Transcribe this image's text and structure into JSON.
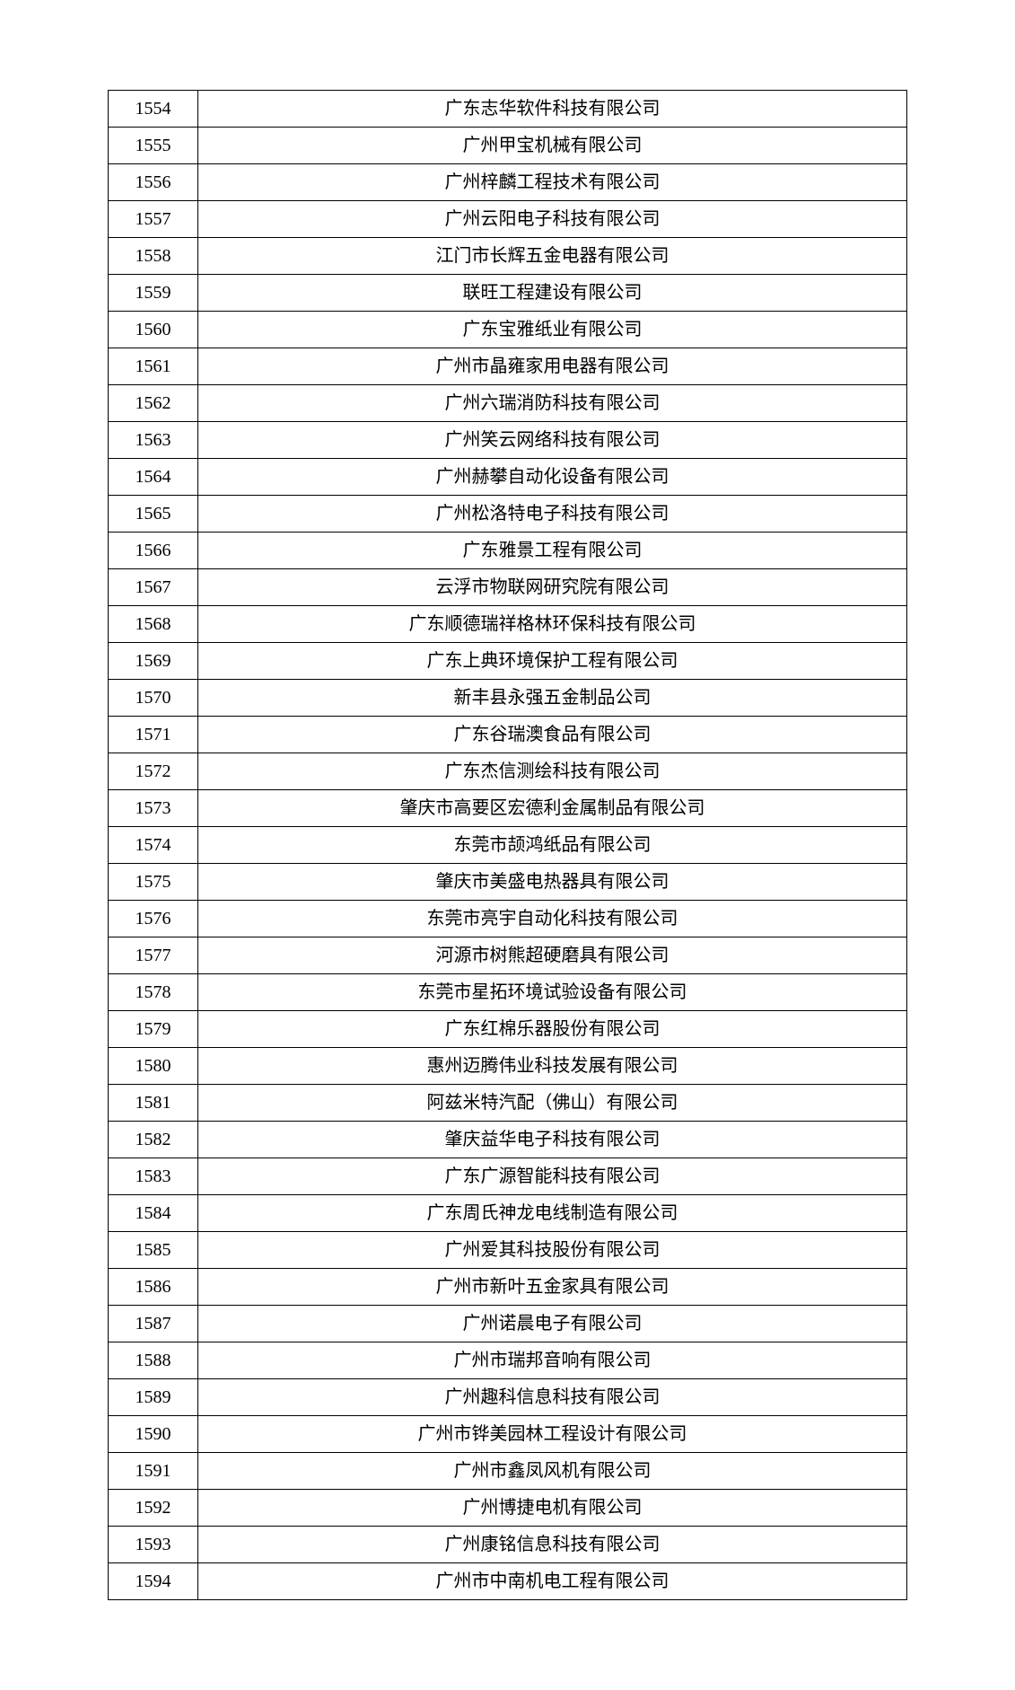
{
  "table": {
    "rows": [
      {
        "num": "1554",
        "name": "广东志华软件科技有限公司"
      },
      {
        "num": "1555",
        "name": "广州甲宝机械有限公司"
      },
      {
        "num": "1556",
        "name": "广州梓麟工程技术有限公司"
      },
      {
        "num": "1557",
        "name": "广州云阳电子科技有限公司"
      },
      {
        "num": "1558",
        "name": "江门市长辉五金电器有限公司"
      },
      {
        "num": "1559",
        "name": "联旺工程建设有限公司"
      },
      {
        "num": "1560",
        "name": "广东宝雅纸业有限公司"
      },
      {
        "num": "1561",
        "name": "广州市晶雍家用电器有限公司"
      },
      {
        "num": "1562",
        "name": "广州六瑞消防科技有限公司"
      },
      {
        "num": "1563",
        "name": "广州笑云网络科技有限公司"
      },
      {
        "num": "1564",
        "name": "广州赫攀自动化设备有限公司"
      },
      {
        "num": "1565",
        "name": "广州松洛特电子科技有限公司"
      },
      {
        "num": "1566",
        "name": "广东雅景工程有限公司"
      },
      {
        "num": "1567",
        "name": "云浮市物联网研究院有限公司"
      },
      {
        "num": "1568",
        "name": "广东顺德瑞祥格林环保科技有限公司"
      },
      {
        "num": "1569",
        "name": "广东上典环境保护工程有限公司"
      },
      {
        "num": "1570",
        "name": "新丰县永强五金制品公司"
      },
      {
        "num": "1571",
        "name": "广东谷瑞澳食品有限公司"
      },
      {
        "num": "1572",
        "name": "广东杰信测绘科技有限公司"
      },
      {
        "num": "1573",
        "name": "肇庆市高要区宏德利金属制品有限公司"
      },
      {
        "num": "1574",
        "name": "东莞市颉鸿纸品有限公司"
      },
      {
        "num": "1575",
        "name": "肇庆市美盛电热器具有限公司"
      },
      {
        "num": "1576",
        "name": "东莞市亮宇自动化科技有限公司"
      },
      {
        "num": "1577",
        "name": "河源市树熊超硬磨具有限公司"
      },
      {
        "num": "1578",
        "name": "东莞市星拓环境试验设备有限公司"
      },
      {
        "num": "1579",
        "name": "广东红棉乐器股份有限公司"
      },
      {
        "num": "1580",
        "name": "惠州迈腾伟业科技发展有限公司"
      },
      {
        "num": "1581",
        "name": "阿兹米特汽配（佛山）有限公司"
      },
      {
        "num": "1582",
        "name": "肇庆益华电子科技有限公司"
      },
      {
        "num": "1583",
        "name": "广东广源智能科技有限公司"
      },
      {
        "num": "1584",
        "name": "广东周氏神龙电线制造有限公司"
      },
      {
        "num": "1585",
        "name": "广州爱其科技股份有限公司"
      },
      {
        "num": "1586",
        "name": "广州市新叶五金家具有限公司"
      },
      {
        "num": "1587",
        "name": "广州诺晨电子有限公司"
      },
      {
        "num": "1588",
        "name": "广州市瑞邦音响有限公司"
      },
      {
        "num": "1589",
        "name": "广州趣科信息科技有限公司"
      },
      {
        "num": "1590",
        "name": "广州市铧美园林工程设计有限公司"
      },
      {
        "num": "1591",
        "name": "广州市鑫凤风机有限公司"
      },
      {
        "num": "1592",
        "name": "广州博捷电机有限公司"
      },
      {
        "num": "1593",
        "name": "广州康铭信息科技有限公司"
      },
      {
        "num": "1594",
        "name": "广州市中南机电工程有限公司"
      }
    ]
  }
}
